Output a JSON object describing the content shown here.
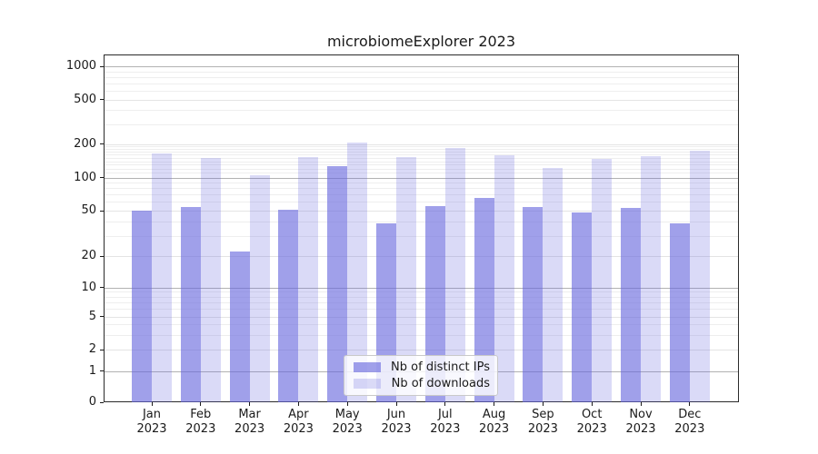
{
  "figure": {
    "title": "microbiomeExplorer 2023"
  },
  "chart_data": {
    "type": "bar",
    "title": "microbiomeExplorer 2023",
    "x": {
      "months": [
        "Jan",
        "Feb",
        "Mar",
        "Apr",
        "May",
        "Jun",
        "Jul",
        "Aug",
        "Sep",
        "Oct",
        "Nov",
        "Dec"
      ],
      "year": "2023"
    },
    "categories": [
      "Jan 2023",
      "Feb 2023",
      "Mar 2023",
      "Apr 2023",
      "May 2023",
      "Jun 2023",
      "Jul 2023",
      "Aug 2023",
      "Sep 2023",
      "Oct 2023",
      "Nov 2023",
      "Dec 2023"
    ],
    "series": [
      {
        "name": "Nb of distinct IPs",
        "color": "rgba(102,102,221,0.62)",
        "values": [
          50,
          54,
          22,
          51,
          126,
          39,
          55,
          65,
          54,
          48,
          53,
          39
        ]
      },
      {
        "name": "Nb of downloads",
        "color": "rgba(102,102,221,0.24)",
        "values": [
          165,
          150,
          105,
          152,
          207,
          153,
          183,
          158,
          122,
          147,
          154,
          175
        ]
      }
    ],
    "y_axis": {
      "scale": "pseudo-log (asinh-like)",
      "ticks": [
        0,
        1,
        2,
        5,
        10,
        20,
        50,
        100,
        200,
        500,
        1000
      ],
      "major_gridlines": [
        1,
        10,
        100,
        1000
      ],
      "labeled_gridlines": [
        2,
        5,
        20,
        50,
        200,
        500
      ],
      "minor_gridlines": [
        3,
        4,
        6,
        7,
        8,
        9,
        30,
        40,
        60,
        70,
        80,
        90,
        110,
        120,
        130,
        140,
        150,
        160,
        170,
        180,
        190,
        300,
        400,
        600,
        700,
        800,
        900
      ],
      "ylim": [
        0,
        1300
      ]
    },
    "xlabel": "",
    "ylabel": "",
    "legend": {
      "position": "lower center",
      "entries": [
        "Nb of distinct IPs",
        "Nb of downloads"
      ]
    },
    "grid": {
      "horizontal": true,
      "vertical": false
    }
  },
  "colors": {
    "bar_distinct_ips": "rgba(102,102,221,0.62)",
    "bar_downloads": "rgba(102,102,221,0.24)",
    "grid_major": "#b2b2b2",
    "grid_labeled": "#e4e4e4",
    "grid_minor": "#eeeeee",
    "axis": "#2a2a2a",
    "text": "#1a1a1a",
    "legend_border": "#c9c9c9",
    "background": "#ffffff"
  }
}
